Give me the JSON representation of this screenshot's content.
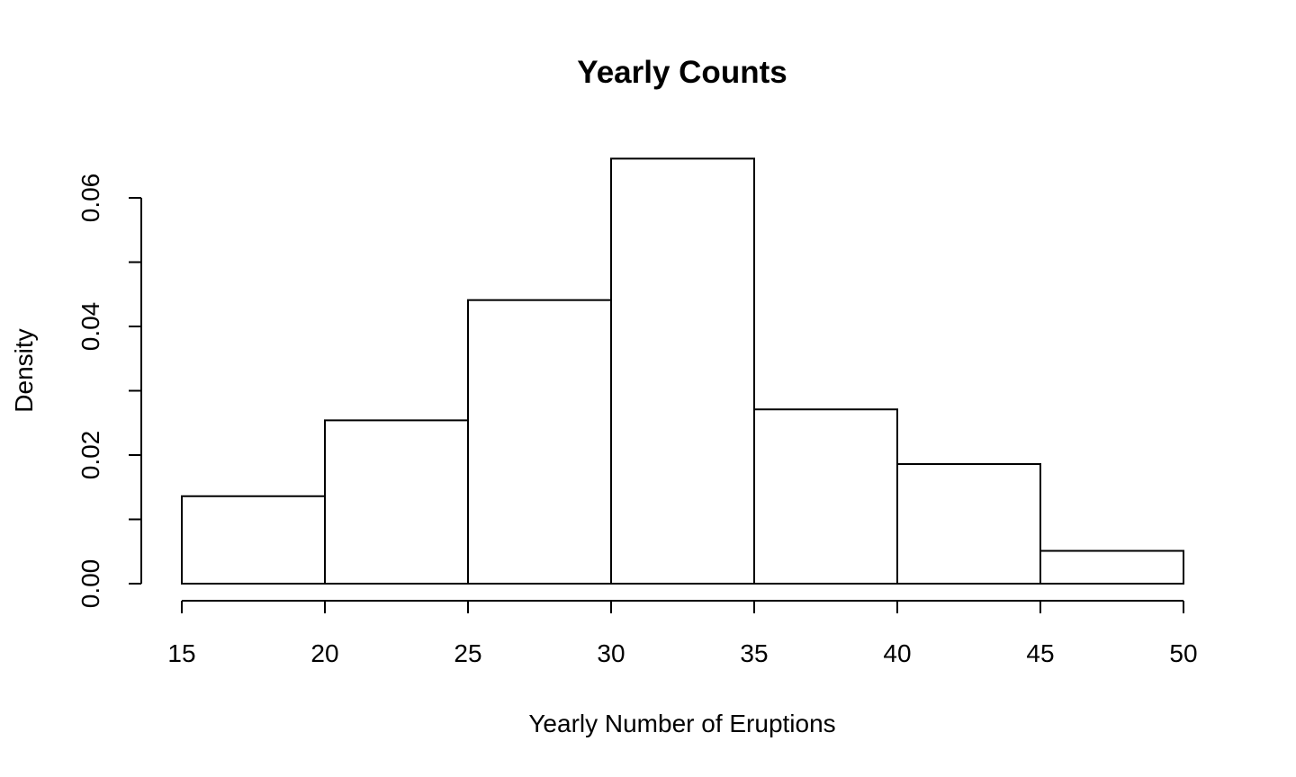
{
  "chart_data": {
    "type": "bar",
    "subtype": "histogram",
    "title": "Yearly Counts",
    "xlabel": "Yearly Number of Eruptions",
    "ylabel": "Density",
    "bins": [
      {
        "start": 15,
        "end": 20,
        "density": 0.0136
      },
      {
        "start": 20,
        "end": 25,
        "density": 0.0254
      },
      {
        "start": 25,
        "end": 30,
        "density": 0.0441
      },
      {
        "start": 30,
        "end": 35,
        "density": 0.0661
      },
      {
        "start": 35,
        "end": 40,
        "density": 0.0271
      },
      {
        "start": 40,
        "end": 45,
        "density": 0.0186
      },
      {
        "start": 45,
        "end": 50,
        "density": 0.0051
      }
    ],
    "xlim": [
      15,
      50
    ],
    "ylim": [
      0,
      0.06
    ],
    "x_ticks": [
      15,
      20,
      25,
      30,
      35,
      40,
      45,
      50
    ],
    "x_tick_labels": [
      "15",
      "20",
      "25",
      "30",
      "35",
      "40",
      "45",
      "50"
    ],
    "y_ticks": [
      0,
      0.01,
      0.02,
      0.03,
      0.04,
      0.05,
      0.06
    ],
    "y_tick_labels": [
      "0.00",
      "",
      "0.02",
      "",
      "0.04",
      "",
      "0.06"
    ],
    "grid": false,
    "legend": "none",
    "bar_fill": "#ffffff",
    "bar_stroke": "#000000"
  }
}
